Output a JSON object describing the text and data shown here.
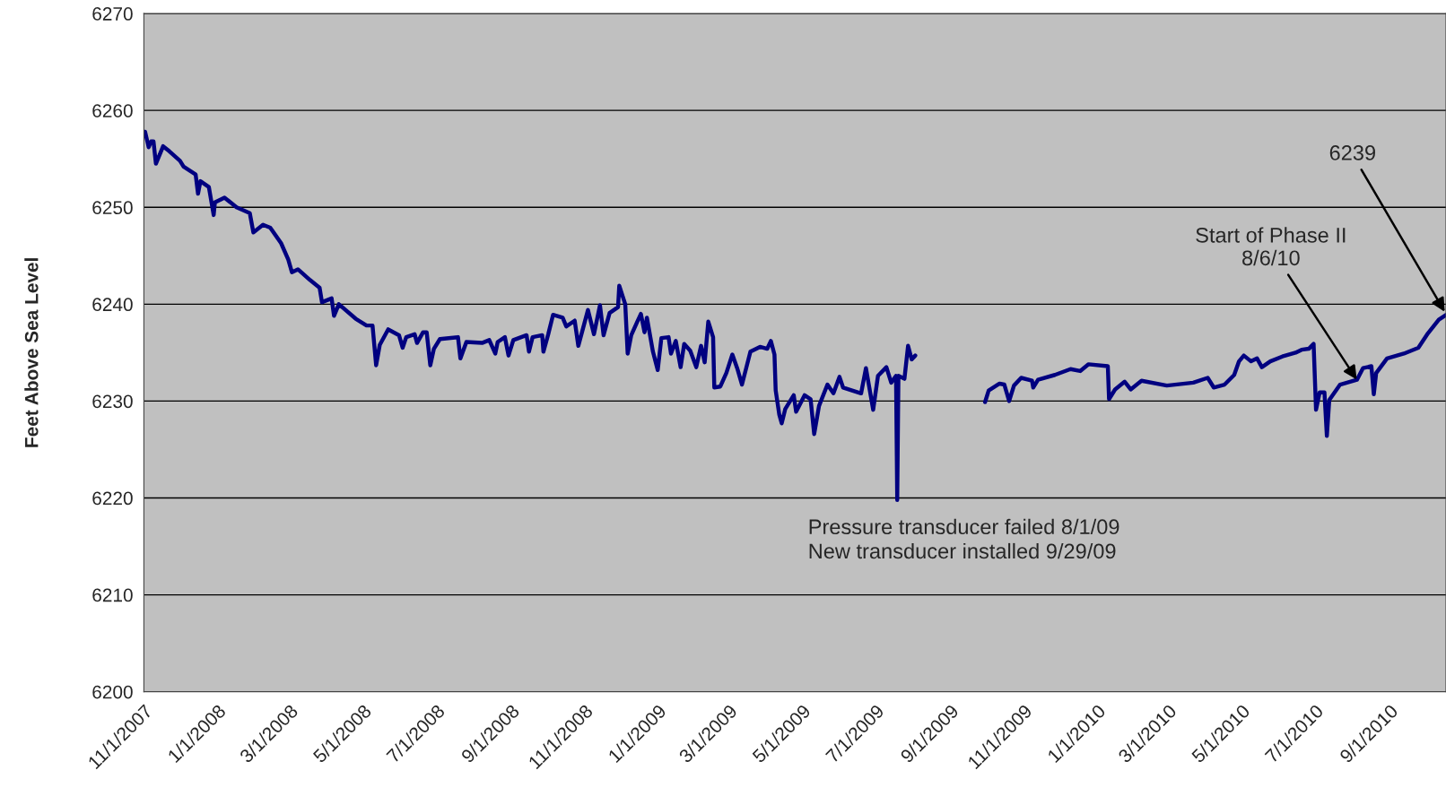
{
  "chart_data": {
    "type": "line",
    "ylabel": "Feet Above Sea Level",
    "x": [
      "2007-11-02",
      "2007-11-05",
      "2007-11-07",
      "2007-11-09",
      "2007-11-11",
      "2007-11-17",
      "2007-11-22",
      "2007-12-01",
      "2007-12-04",
      "2007-12-14",
      "2007-12-16",
      "2007-12-18",
      "2007-12-25",
      "2007-12-29",
      "2007-12-30",
      "2008-01-07",
      "2008-01-17",
      "2008-01-28",
      "2008-01-31",
      "2008-02-08",
      "2008-02-14",
      "2008-02-23",
      "2008-02-29",
      "2008-03-03",
      "2008-03-08",
      "2008-03-18",
      "2008-03-26",
      "2008-03-28",
      "2008-04-05",
      "2008-04-07",
      "2008-04-11",
      "2008-04-25",
      "2008-05-04",
      "2008-05-09",
      "2008-05-12",
      "2008-05-15",
      "2008-05-22",
      "2008-05-31",
      "2008-06-03",
      "2008-06-06",
      "2008-06-13",
      "2008-06-15",
      "2008-06-20",
      "2008-06-23",
      "2008-06-26",
      "2008-06-29",
      "2008-07-04",
      "2008-07-19",
      "2008-07-21",
      "2008-07-26",
      "2008-08-08",
      "2008-08-14",
      "2008-08-19",
      "2008-08-21",
      "2008-08-27",
      "2008-08-30",
      "2008-09-03",
      "2008-09-14",
      "2008-09-16",
      "2008-09-19",
      "2008-09-27",
      "2008-09-28",
      "2008-10-02",
      "2008-10-06",
      "2008-10-14",
      "2008-10-17",
      "2008-10-24",
      "2008-10-27",
      "2008-11-04",
      "2008-11-09",
      "2008-11-14",
      "2008-11-17",
      "2008-11-22",
      "2008-11-29",
      "2008-11-30",
      "2008-12-05",
      "2008-12-07",
      "2008-12-10",
      "2008-12-15",
      "2008-12-18",
      "2008-12-21",
      "2008-12-23",
      "2008-12-28",
      "2009-01-01",
      "2009-01-04",
      "2009-01-10",
      "2009-01-12",
      "2009-01-16",
      "2009-01-20",
      "2009-01-23",
      "2009-01-28",
      "2009-02-02",
      "2009-02-06",
      "2009-02-09",
      "2009-02-12",
      "2009-02-16",
      "2009-02-17",
      "2009-02-22",
      "2009-02-27",
      "2009-03-04",
      "2009-03-08",
      "2009-03-12",
      "2009-03-19",
      "2009-03-27",
      "2009-04-02",
      "2009-04-05",
      "2009-04-08",
      "2009-04-09",
      "2009-04-12",
      "2009-04-14",
      "2009-04-17",
      "2009-04-24",
      "2009-04-26",
      "2009-05-03",
      "2009-05-08",
      "2009-05-11",
      "2009-05-15",
      "2009-05-22",
      "2009-05-27",
      "2009-06-01",
      "2009-06-04",
      "2009-06-19",
      "2009-06-23",
      "2009-06-29",
      "2009-07-03",
      "2009-07-10",
      "2009-07-14",
      "2009-07-18",
      "2009-07-19",
      "2009-07-20",
      "2009-07-25",
      "2009-07-28",
      "2009-07-31",
      "2009-08-03",
      "2009-09-01",
      "2009-09-30",
      "2009-10-03",
      "2009-10-12",
      "2009-10-16",
      "2009-10-20",
      "2009-10-24",
      "2009-10-30",
      "2009-11-08",
      "2009-11-09",
      "2009-11-13",
      "2009-11-27",
      "2009-12-10",
      "2009-12-18",
      "2009-12-25",
      "2010-01-10",
      "2010-01-11",
      "2010-01-16",
      "2010-01-24",
      "2010-01-29",
      "2010-02-07",
      "2010-02-28",
      "2010-03-22",
      "2010-04-03",
      "2010-04-08",
      "2010-04-17",
      "2010-04-25",
      "2010-04-29",
      "2010-05-03",
      "2010-05-09",
      "2010-05-14",
      "2010-05-18",
      "2010-05-25",
      "2010-06-04",
      "2010-06-15",
      "2010-06-20",
      "2010-06-26",
      "2010-06-30",
      "2010-07-02",
      "2010-07-05",
      "2010-07-09",
      "2010-07-11",
      "2010-07-13",
      "2010-07-22",
      "2010-08-05",
      "2010-08-10",
      "2010-08-17",
      "2010-08-19",
      "2010-08-21",
      "2010-08-30",
      "2010-09-13",
      "2010-09-25",
      "2010-10-03",
      "2010-10-12",
      "2010-10-18"
    ],
    "series": [
      {
        "color": "#000080",
        "values": [
          6257.8,
          6256.2,
          6256.8,
          6256.8,
          6254.5,
          6256.3,
          6255.8,
          6254.8,
          6254.2,
          6253.4,
          6251.4,
          6252.7,
          6252.1,
          6249.2,
          6250.5,
          6251.0,
          6250.0,
          6249.4,
          6247.4,
          6248.2,
          6247.9,
          6246.3,
          6244.6,
          6243.3,
          6243.6,
          6242.5,
          6241.7,
          6240.2,
          6240.6,
          6238.8,
          6240.0,
          6238.5,
          6237.8,
          6237.8,
          6233.7,
          6235.8,
          6237.4,
          6236.8,
          6235.5,
          6236.6,
          6236.9,
          6236.0,
          6237.1,
          6237.1,
          6233.7,
          6235.4,
          6236.4,
          6236.6,
          6234.4,
          6236.1,
          6236.0,
          6236.3,
          6234.9,
          6236.1,
          6236.6,
          6234.7,
          6236.3,
          6236.8,
          6235.1,
          6236.6,
          6236.8,
          6235.1,
          6236.9,
          6238.9,
          6238.6,
          6237.7,
          6238.3,
          6235.7,
          6239.4,
          6236.9,
          6239.9,
          6236.8,
          6239.1,
          6239.7,
          6241.9,
          6240.0,
          6234.9,
          6236.8,
          6238.2,
          6239.0,
          6237.1,
          6238.6,
          6235.1,
          6233.2,
          6236.5,
          6236.6,
          6234.9,
          6236.2,
          6233.5,
          6235.9,
          6235.2,
          6233.5,
          6235.7,
          6234.0,
          6238.2,
          6236.6,
          6231.4,
          6231.5,
          6232.9,
          6234.8,
          6233.4,
          6231.7,
          6235.1,
          6235.6,
          6235.4,
          6236.2,
          6234.8,
          6231.1,
          6228.6,
          6227.7,
          6229.2,
          6230.6,
          6228.9,
          6230.6,
          6230.2,
          6226.6,
          6229.5,
          6231.7,
          6230.8,
          6232.5,
          6231.4,
          6230.8,
          6233.4,
          6229.1,
          6232.6,
          6233.5,
          6231.9,
          6232.6,
          6219.8,
          6232.6,
          6232.3,
          6235.7,
          6234.3,
          6234.7,
          null,
          6229.9,
          6231.1,
          6231.8,
          6231.7,
          6230.0,
          6231.6,
          6232.4,
          6232.1,
          6231.4,
          6232.2,
          6232.7,
          6233.3,
          6233.1,
          6233.8,
          6233.6,
          6230.2,
          6231.2,
          6232.0,
          6231.2,
          6232.1,
          6231.6,
          6231.9,
          6232.4,
          6231.4,
          6231.7,
          6232.7,
          6234.1,
          6234.7,
          6234.1,
          6234.4,
          6233.5,
          6234.1,
          6234.6,
          6235.0,
          6235.3,
          6235.4,
          6235.9,
          6229.1,
          6230.9,
          6230.9,
          6226.4,
          6230.1,
          6231.7,
          6232.2,
          6233.4,
          6233.6,
          6230.7,
          6232.9,
          6234.4,
          6234.9,
          6235.5,
          6237.0,
          6238.4,
          6238.9
        ]
      }
    ],
    "xlim": [
      "2007-11-01",
      "2010-10-18"
    ],
    "xticks": [
      {
        "value": "2007-11-01",
        "label": "11/1/2007"
      },
      {
        "value": "2008-01-01",
        "label": "1/1/2008"
      },
      {
        "value": "2008-03-01",
        "label": "3/1/2008"
      },
      {
        "value": "2008-05-01",
        "label": "5/1/2008"
      },
      {
        "value": "2008-07-01",
        "label": "7/1/2008"
      },
      {
        "value": "2008-09-01",
        "label": "9/1/2008"
      },
      {
        "value": "2008-11-01",
        "label": "11/1/2008"
      },
      {
        "value": "2009-01-01",
        "label": "1/1/2009"
      },
      {
        "value": "2009-03-01",
        "label": "3/1/2009"
      },
      {
        "value": "2009-05-01",
        "label": "5/1/2009"
      },
      {
        "value": "2009-07-01",
        "label": "7/1/2009"
      },
      {
        "value": "2009-09-01",
        "label": "9/1/2009"
      },
      {
        "value": "2009-11-01",
        "label": "11/1/2009"
      },
      {
        "value": "2010-01-01",
        "label": "1/1/2010"
      },
      {
        "value": "2010-03-01",
        "label": "3/1/2010"
      },
      {
        "value": "2010-05-01",
        "label": "5/1/2010"
      },
      {
        "value": "2010-07-01",
        "label": "7/1/2010"
      },
      {
        "value": "2010-09-01",
        "label": "9/1/2010"
      }
    ],
    "ylim": [
      6200,
      6270
    ],
    "yticks": [
      6200,
      6210,
      6220,
      6230,
      6240,
      6250,
      6260,
      6270
    ],
    "grid": "y",
    "line_style": "solid",
    "marker": "none",
    "annotations": [
      "Pressure transducer failed 8/1/09\nNew transducer installed 9/29/09",
      {
        "text": "Start of Phase II\n8/6/10",
        "x": "2010-08-06",
        "y": 6232
      },
      {
        "text": "6239",
        "x": "2010-10-18",
        "y": 6239
      }
    ]
  }
}
